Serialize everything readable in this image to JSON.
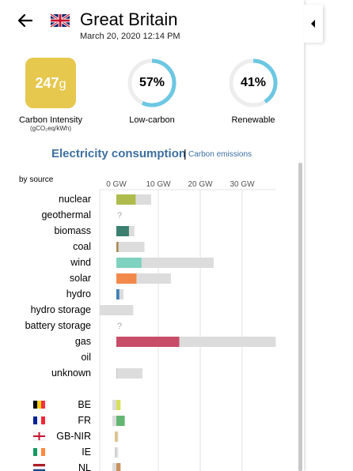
{
  "header": {
    "title": "Great Britain",
    "datetime": "March 20, 2020 12:14 PM",
    "back_icon": "arrow-left-icon",
    "flag_icon": "flag-gb-icon"
  },
  "metrics": {
    "carbon_intensity": {
      "value": "247",
      "unit": "g",
      "label": "Carbon Intensity",
      "unit_label": "(gCO₂eq/kWh)",
      "color": "#e6c84f"
    },
    "low_carbon": {
      "value": "57%",
      "fraction": 0.57,
      "label": "Low-carbon",
      "color": "#6cc7e2"
    },
    "renewable": {
      "value": "41%",
      "fraction": 0.41,
      "label": "Renewable",
      "color": "#6cc7e2"
    }
  },
  "tabs": {
    "consumption": "Electricity consumption",
    "separator": "|",
    "emissions": "Carbon emissions"
  },
  "by_source_label": "by source",
  "chart_data": {
    "type": "bar",
    "axis": {
      "ticks": [
        "0 GW",
        "10 GW",
        "20 GW",
        "30 GW"
      ],
      "tick_values": [
        0,
        10,
        20,
        30
      ],
      "max": 38,
      "unit": "GW"
    },
    "sources": [
      {
        "name": "nuclear",
        "value": 4.6,
        "capacity": 8.3,
        "color": "#aebc4d"
      },
      {
        "name": "geothermal",
        "value": null,
        "capacity": null,
        "unknown": "?",
        "color": "#aaaaaa"
      },
      {
        "name": "biomass",
        "value": 3.0,
        "capacity": 4.3,
        "color": "#3a7f70"
      },
      {
        "name": "coal",
        "value": 0.5,
        "capacity": 6.7,
        "color": "#aa8b55"
      },
      {
        "name": "wind",
        "value": 6.0,
        "capacity": 23.2,
        "color": "#7ed2bf"
      },
      {
        "name": "solar",
        "value": 4.8,
        "capacity": 13.0,
        "color": "#f2894a"
      },
      {
        "name": "hydro",
        "value": 0.7,
        "capacity": 1.7,
        "color": "#3f7fb9"
      },
      {
        "name": "hydro storage",
        "value": 0,
        "capacity": 4.0,
        "negative": 4.0,
        "color": "#2b4a7a"
      },
      {
        "name": "battery storage",
        "value": null,
        "capacity": null,
        "unknown": "?",
        "color": "#aaaaaa"
      },
      {
        "name": "gas",
        "value": 15.0,
        "capacity": 38.0,
        "color": "#c84d68"
      },
      {
        "name": "oil",
        "value": 0,
        "capacity": 0,
        "color": "#888888"
      },
      {
        "name": "unknown",
        "value": 0.1,
        "capacity": 6.2,
        "color": "#aaaaaa"
      }
    ],
    "exchanges": [
      {
        "code": "BE",
        "flag": "flag-be-icon",
        "value": 1.0,
        "capacity": 1.0,
        "import": true,
        "color": "#d6e05b"
      },
      {
        "code": "FR",
        "flag": "flag-fr-icon",
        "value": 2.0,
        "capacity": 2.0,
        "import": true,
        "color": "#63b672"
      },
      {
        "code": "GB-NIR",
        "flag": "flag-gb-nir-icon",
        "value": 0.3,
        "capacity": 0.5,
        "import": false,
        "color": "#dbc48a"
      },
      {
        "code": "IE",
        "flag": "flag-ie-icon",
        "value": 0.1,
        "capacity": 0.5,
        "import": false,
        "color": "#d0d0d0"
      },
      {
        "code": "NL",
        "flag": "flag-nl-icon",
        "value": 1.0,
        "capacity": 1.0,
        "import": true,
        "color": "#c9915e"
      }
    ]
  }
}
